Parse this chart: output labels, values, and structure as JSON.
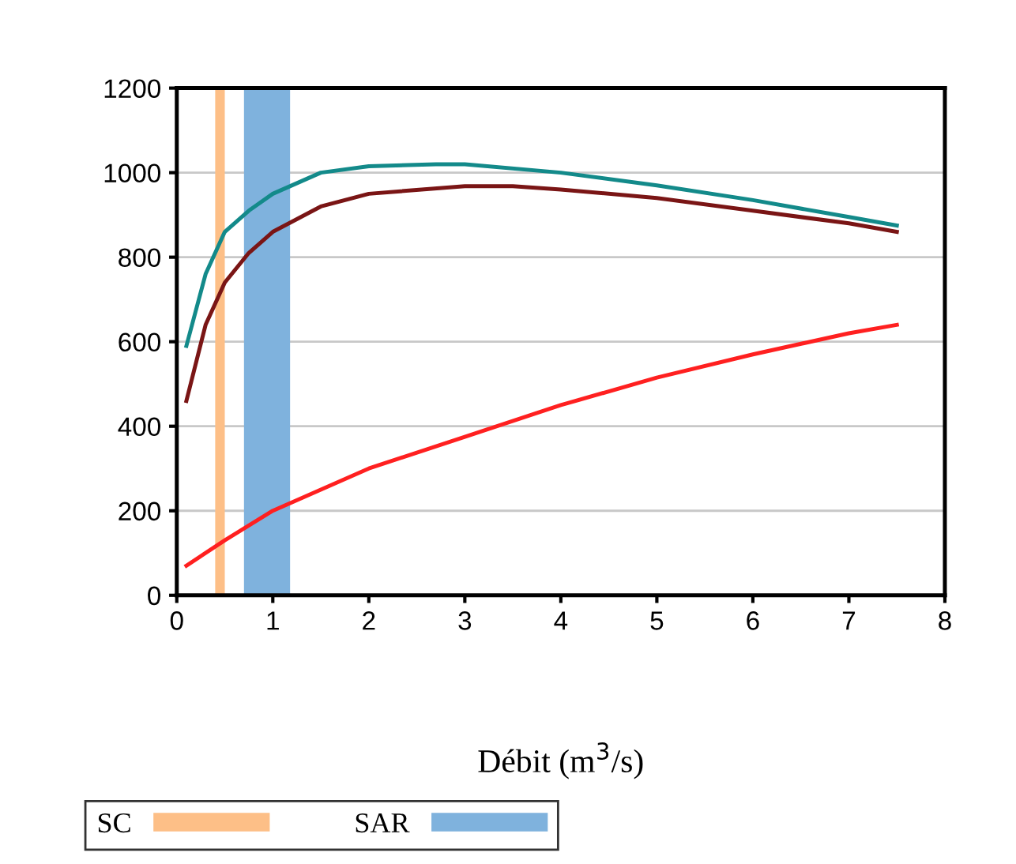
{
  "chart_data": {
    "type": "line",
    "xlabel": "Débit (m$^{3}$/s)",
    "xlim": [
      0,
      8
    ],
    "xticks": [
      0,
      1,
      2,
      3,
      4,
      5,
      6,
      7,
      8
    ],
    "ylim": [
      0,
      1200
    ],
    "yticks": [
      0,
      200,
      400,
      600,
      800,
      1000,
      1200
    ],
    "grid": "y",
    "legend": "bottom",
    "series": [
      {
        "color": "#138a8a",
        "x": [
          0.1,
          0.3,
          0.5,
          0.75,
          1,
          1.5,
          2,
          2.7,
          3,
          4,
          5,
          6,
          7,
          7.5
        ],
        "values": [
          590,
          760,
          860,
          910,
          950,
          1000,
          1015,
          1020,
          1020,
          1000,
          970,
          935,
          895,
          875
        ]
      },
      {
        "color": "#7a1515",
        "x": [
          0.1,
          0.3,
          0.5,
          0.75,
          1,
          1.5,
          2,
          3,
          3.5,
          4,
          5,
          6,
          7,
          7.5
        ],
        "values": [
          460,
          640,
          740,
          810,
          860,
          920,
          950,
          968,
          968,
          960,
          940,
          910,
          880,
          860
        ]
      },
      {
        "color": "#ff2020",
        "x": [
          0.1,
          0.5,
          1,
          2,
          3,
          4,
          5,
          6,
          7,
          7.5
        ],
        "values": [
          70,
          130,
          200,
          300,
          375,
          450,
          515,
          570,
          620,
          640
        ]
      }
    ],
    "bands": [
      {
        "axis": "x",
        "from": 0.4,
        "to": 0.5,
        "label": "SC",
        "color": "#fdbf87"
      },
      {
        "axis": "x",
        "from": 0.7,
        "to": 1.18,
        "label": "SAR",
        "color": "#7fb2dd"
      }
    ]
  }
}
